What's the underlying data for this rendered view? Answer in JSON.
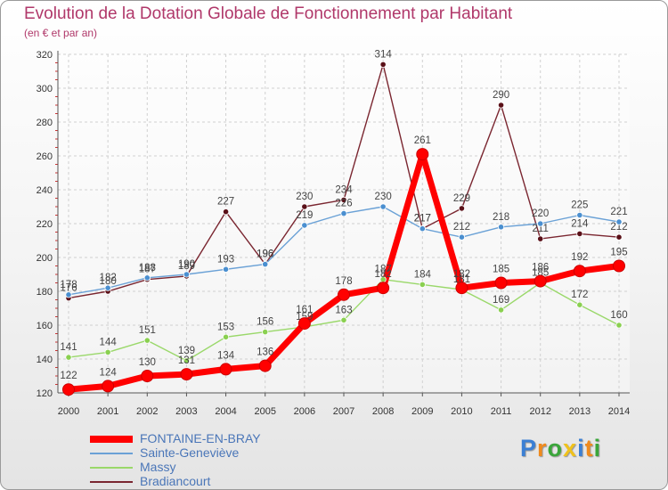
{
  "chart_data": {
    "type": "line",
    "title": "Evolution de la Dotation Globale de Fonctionnement par Habitant",
    "subtitle": "(en € et par an)",
    "xlabel": "",
    "ylabel": "",
    "x": [
      "2000",
      "2001",
      "2002",
      "2003",
      "2004",
      "2005",
      "2006",
      "2007",
      "2008",
      "2009",
      "2010",
      "2011",
      "2012",
      "2013",
      "2014"
    ],
    "ylim": [
      120,
      320
    ],
    "yticks": [
      120,
      140,
      160,
      180,
      200,
      220,
      240,
      260,
      280,
      300,
      320
    ],
    "grid": true,
    "series": [
      {
        "name": "FONTAINE-EN-BRAY",
        "color": "#ff0000",
        "values": [
          122,
          124,
          130,
          131,
          134,
          136,
          161,
          178,
          182,
          261,
          182,
          185,
          186,
          192,
          195
        ]
      },
      {
        "name": "Sainte-Geneviève",
        "color": "#6aa1d6",
        "values": [
          178,
          182,
          188,
          190,
          193,
          196,
          219,
          226,
          230,
          217,
          212,
          218,
          220,
          225,
          221
        ]
      },
      {
        "name": "Massy",
        "color": "#9ad86a",
        "values": [
          141,
          144,
          151,
          139,
          153,
          156,
          159,
          163,
          187,
          184,
          181,
          169,
          185,
          172,
          160
        ]
      },
      {
        "name": "Bradiancourt",
        "color": "#7a2630",
        "values": [
          176,
          180,
          187,
          189,
          227,
          196,
          230,
          234,
          314,
          217,
          229,
          290,
          211,
          214,
          212
        ]
      }
    ]
  },
  "logo": {
    "letters": [
      "P",
      "r",
      "o",
      "x",
      "i",
      "t",
      "i"
    ],
    "colors": [
      "#3b7fd4",
      "#f08a1c",
      "#3aa63a",
      "#f0c21c",
      "#3b7fd4",
      "#f08a1c",
      "#3aa63a"
    ]
  }
}
